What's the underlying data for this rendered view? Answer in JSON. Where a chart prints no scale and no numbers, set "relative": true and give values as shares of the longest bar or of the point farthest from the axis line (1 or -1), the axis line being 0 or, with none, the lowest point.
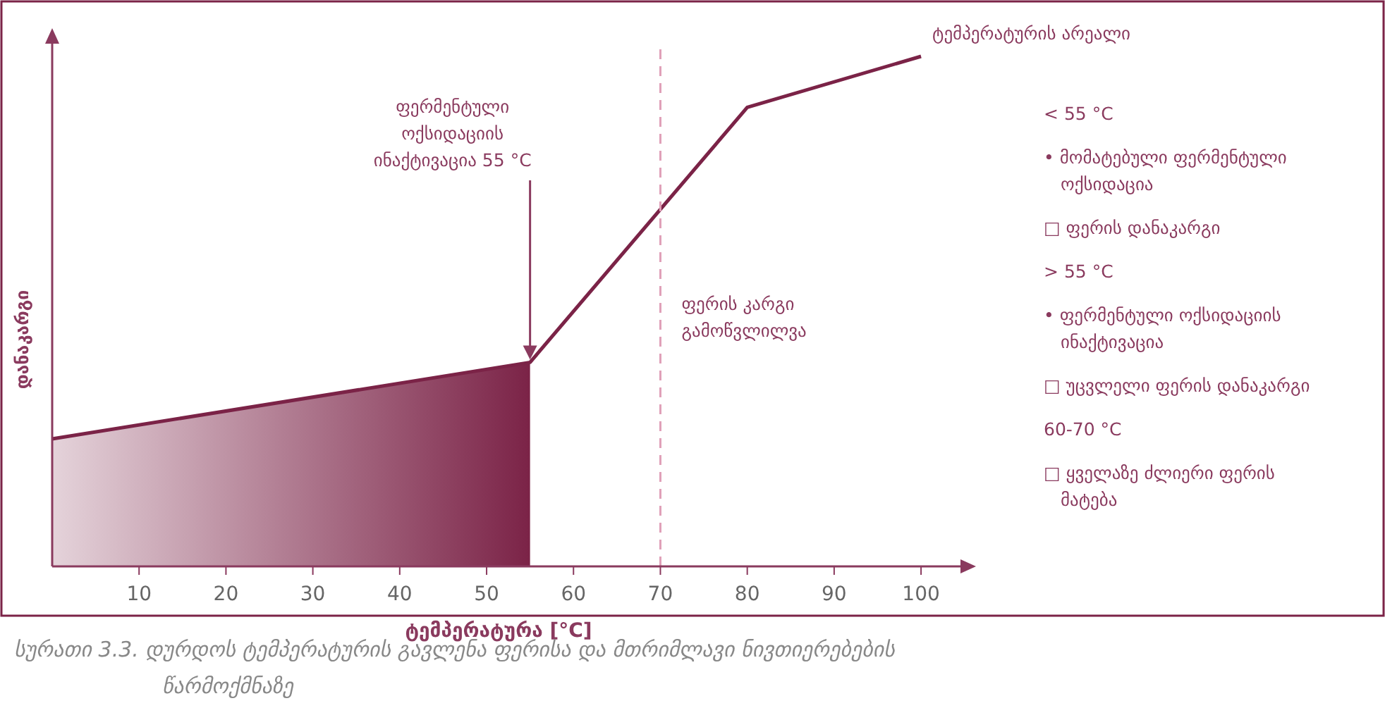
{
  "chart_data": {
    "type": "line",
    "relative": true,
    "xlabel": "ტემპერატურა [°C]",
    "ylabel": "დანაკარგი",
    "xlim": [
      0,
      106
    ],
    "xticks": [
      10,
      20,
      30,
      40,
      50,
      60,
      70,
      80,
      90,
      100
    ],
    "grid": false,
    "marker": "none",
    "line_style": "solid",
    "series": [
      {
        "type": "area",
        "color": "#7b2347",
        "x": [
          0,
          55
        ],
        "values": [
          0.25,
          0.4
        ]
      },
      {
        "type": "line",
        "color": "#7b2347",
        "x": [
          0,
          55,
          80,
          100
        ],
        "values": [
          0.25,
          0.4,
          0.9,
          1
        ]
      }
    ],
    "ref_lines": [
      {
        "axis": "x",
        "value": 70,
        "label": "ფერის კარგი გამოწვლილვა",
        "color": "#e0a0b8",
        "line_style": "dashed"
      }
    ],
    "annotations": [
      "ფერმენტული ოქსიდაციის ინაქტივაცია 55 °C",
      {
        "text": "ტემპერატურის არეალი",
        "x": 100,
        "y": 1
      },
      "< 55 °C",
      "• მომატებული ფერმენტული ოქსიდაცია",
      "□ ფერის დანაკარგი",
      "> 55 °C",
      "• ფერმენტული ოქსიდაციის ინაქტივაცია",
      "□ უცვლელი ფერის დანაკარგი",
      "60-70 °C",
      "□ ყველაზე ძლიერი ფერის მატება",
      "სურათი 3.3. დურდოს ტემპერატურის გავლენა ფერისა და მთრიმლავი ნივთიერებების წარმოქმნაზე"
    ]
  }
}
